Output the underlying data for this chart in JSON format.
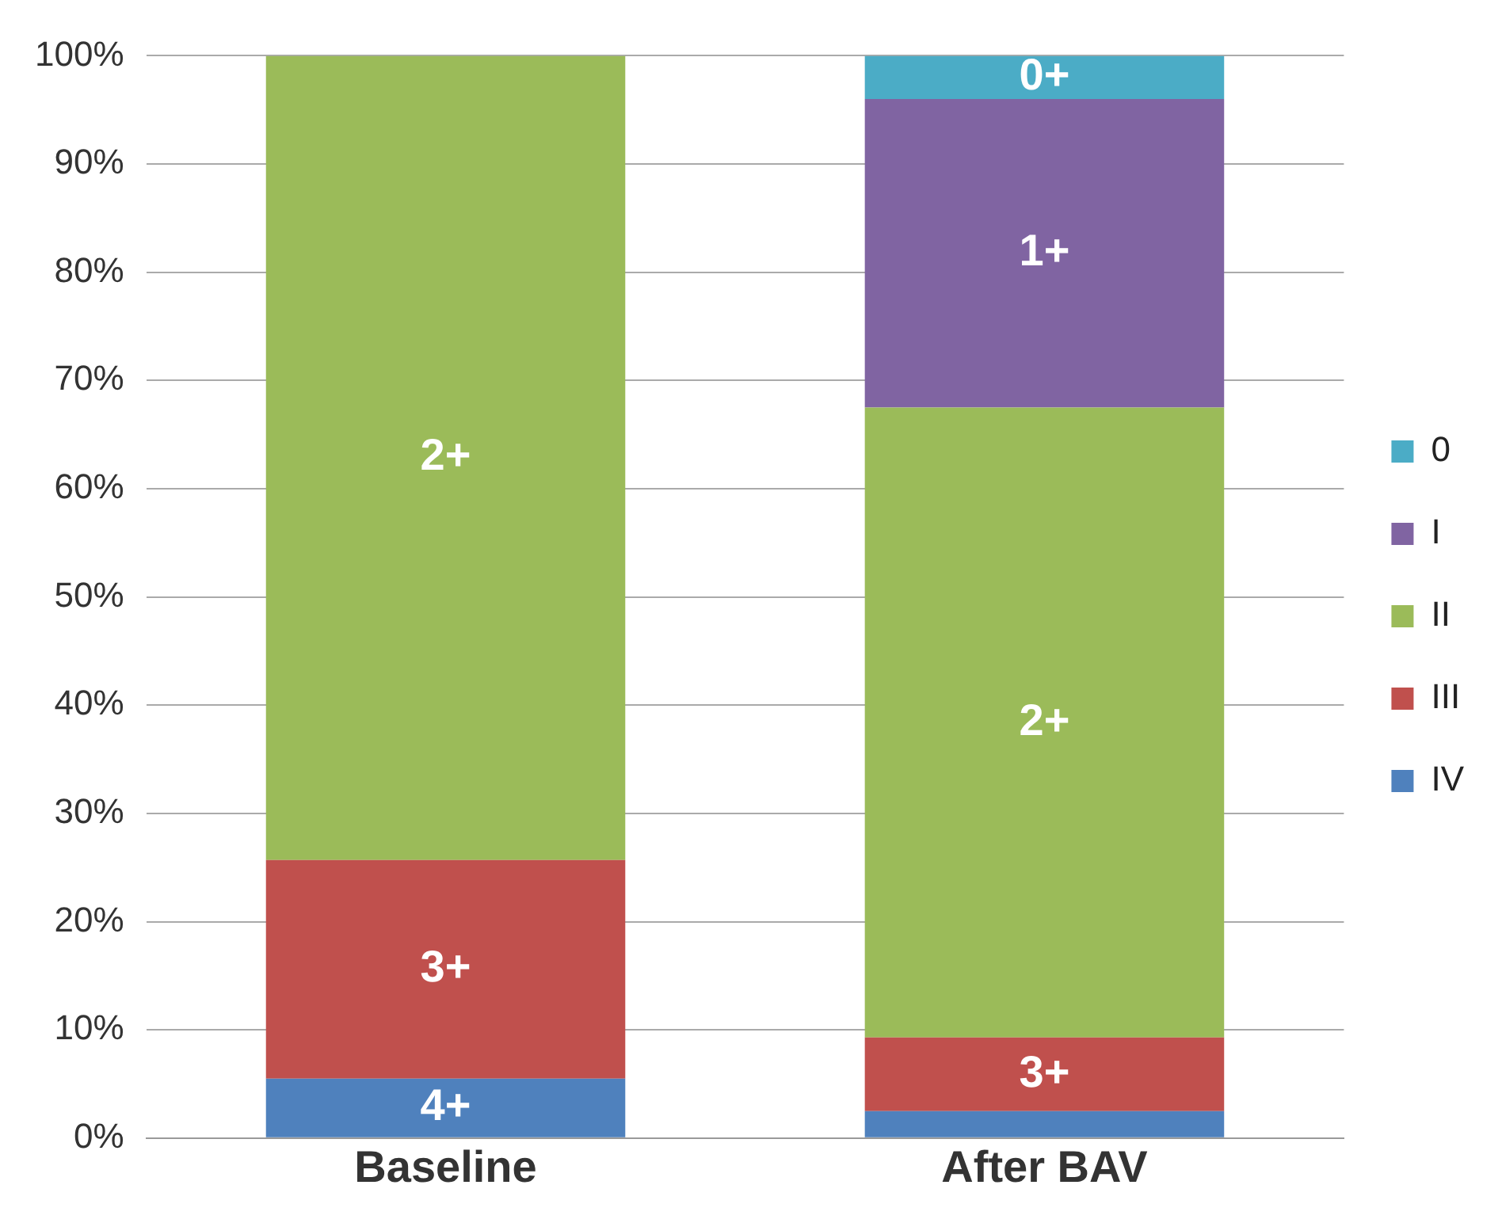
{
  "chart_data": {
    "type": "bar",
    "stacked": true,
    "categories": [
      "Baseline",
      "After BAV"
    ],
    "series": [
      {
        "name": "IV",
        "color": "#4f81bd",
        "values": [
          5.5,
          2.5
        ],
        "value_labels": [
          "4+",
          null
        ]
      },
      {
        "name": "III",
        "color": "#c0504d",
        "values": [
          20.2,
          6.8
        ],
        "value_labels": [
          "3+",
          "3+"
        ]
      },
      {
        "name": "II",
        "color": "#9bbb59",
        "values": [
          74.3,
          58.2
        ],
        "value_labels": [
          "2+",
          "2+"
        ]
      },
      {
        "name": "I",
        "color": "#8064a2",
        "values": [
          null,
          28.5
        ],
        "value_labels": [
          null,
          "1+"
        ]
      },
      {
        "name": "0",
        "color": "#4bacc6",
        "values": [
          null,
          4
        ],
        "value_labels": [
          null,
          "0+"
        ]
      }
    ],
    "ylim": [
      0,
      100
    ],
    "yticks": [
      {
        "value": 0,
        "label": "0%"
      },
      {
        "value": 10,
        "label": "10%"
      },
      {
        "value": 20,
        "label": "20%"
      },
      {
        "value": 30,
        "label": "30%"
      },
      {
        "value": 40,
        "label": "40%"
      },
      {
        "value": 50,
        "label": "50%"
      },
      {
        "value": 60,
        "label": "60%"
      },
      {
        "value": 70,
        "label": "70%"
      },
      {
        "value": 80,
        "label": "80%"
      },
      {
        "value": 90,
        "label": "90%"
      },
      {
        "value": 100,
        "label": "100%"
      }
    ],
    "grid": "y",
    "legend": "right"
  }
}
